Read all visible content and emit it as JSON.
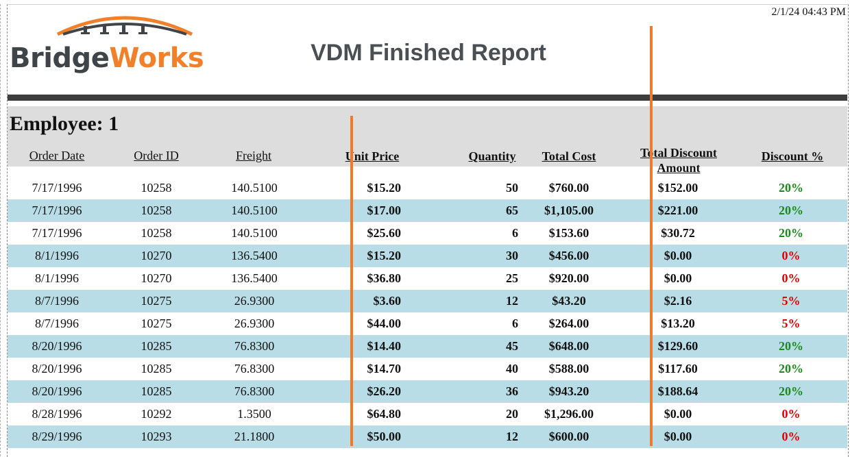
{
  "report": {
    "timestamp": "2/1/24 04:43 PM",
    "logo": {
      "part1": "Bridge",
      "part2": "Works"
    },
    "title": "VDM Finished Report"
  },
  "colors": {
    "brand_orange": "#f0802a",
    "brand_gray": "#3e4448",
    "row_alt": "#b8dde7",
    "green": "#1a8a1a",
    "red": "#e00000"
  },
  "group": {
    "title": "Employee: 1"
  },
  "columns": {
    "order_date": "Order Date",
    "order_id": "Order ID",
    "freight": "Freight",
    "unit_price": "Unit Price",
    "quantity": "Quantity",
    "total_cost": "Total Cost",
    "total_discount_line1": "Total Discount",
    "total_discount_line2": "Amount",
    "discount_pct": "Discount %"
  },
  "rows": [
    {
      "date": "7/17/1996",
      "id": "10258",
      "freight": "140.5100",
      "price": "$15.20",
      "qty": "50",
      "cost": "$760.00",
      "disc": "$152.00",
      "pct": "20%",
      "pct_color": "green"
    },
    {
      "date": "7/17/1996",
      "id": "10258",
      "freight": "140.5100",
      "price": "$17.00",
      "qty": "65",
      "cost": "$1,105.00",
      "disc": "$221.00",
      "pct": "20%",
      "pct_color": "green"
    },
    {
      "date": "7/17/1996",
      "id": "10258",
      "freight": "140.5100",
      "price": "$25.60",
      "qty": "6",
      "cost": "$153.60",
      "disc": "$30.72",
      "pct": "20%",
      "pct_color": "green"
    },
    {
      "date": "8/1/1996",
      "id": "10270",
      "freight": "136.5400",
      "price": "$15.20",
      "qty": "30",
      "cost": "$456.00",
      "disc": "$0.00",
      "pct": "0%",
      "pct_color": "red"
    },
    {
      "date": "8/1/1996",
      "id": "10270",
      "freight": "136.5400",
      "price": "$36.80",
      "qty": "25",
      "cost": "$920.00",
      "disc": "$0.00",
      "pct": "0%",
      "pct_color": "red"
    },
    {
      "date": "8/7/1996",
      "id": "10275",
      "freight": "26.9300",
      "price": "$3.60",
      "qty": "12",
      "cost": "$43.20",
      "disc": "$2.16",
      "pct": "5%",
      "pct_color": "red"
    },
    {
      "date": "8/7/1996",
      "id": "10275",
      "freight": "26.9300",
      "price": "$44.00",
      "qty": "6",
      "cost": "$264.00",
      "disc": "$13.20",
      "pct": "5%",
      "pct_color": "red"
    },
    {
      "date": "8/20/1996",
      "id": "10285",
      "freight": "76.8300",
      "price": "$14.40",
      "qty": "45",
      "cost": "$648.00",
      "disc": "$129.60",
      "pct": "20%",
      "pct_color": "green"
    },
    {
      "date": "8/20/1996",
      "id": "10285",
      "freight": "76.8300",
      "price": "$14.70",
      "qty": "40",
      "cost": "$588.00",
      "disc": "$117.60",
      "pct": "20%",
      "pct_color": "green"
    },
    {
      "date": "8/20/1996",
      "id": "10285",
      "freight": "76.8300",
      "price": "$26.20",
      "qty": "36",
      "cost": "$943.20",
      "disc": "$188.64",
      "pct": "20%",
      "pct_color": "green"
    },
    {
      "date": "8/28/1996",
      "id": "10292",
      "freight": "1.3500",
      "price": "$64.80",
      "qty": "20",
      "cost": "$1,296.00",
      "disc": "$0.00",
      "pct": "0%",
      "pct_color": "red"
    },
    {
      "date": "8/29/1996",
      "id": "10293",
      "freight": "21.1800",
      "price": "$50.00",
      "qty": "12",
      "cost": "$600.00",
      "disc": "$0.00",
      "pct": "0%",
      "pct_color": "red"
    }
  ]
}
